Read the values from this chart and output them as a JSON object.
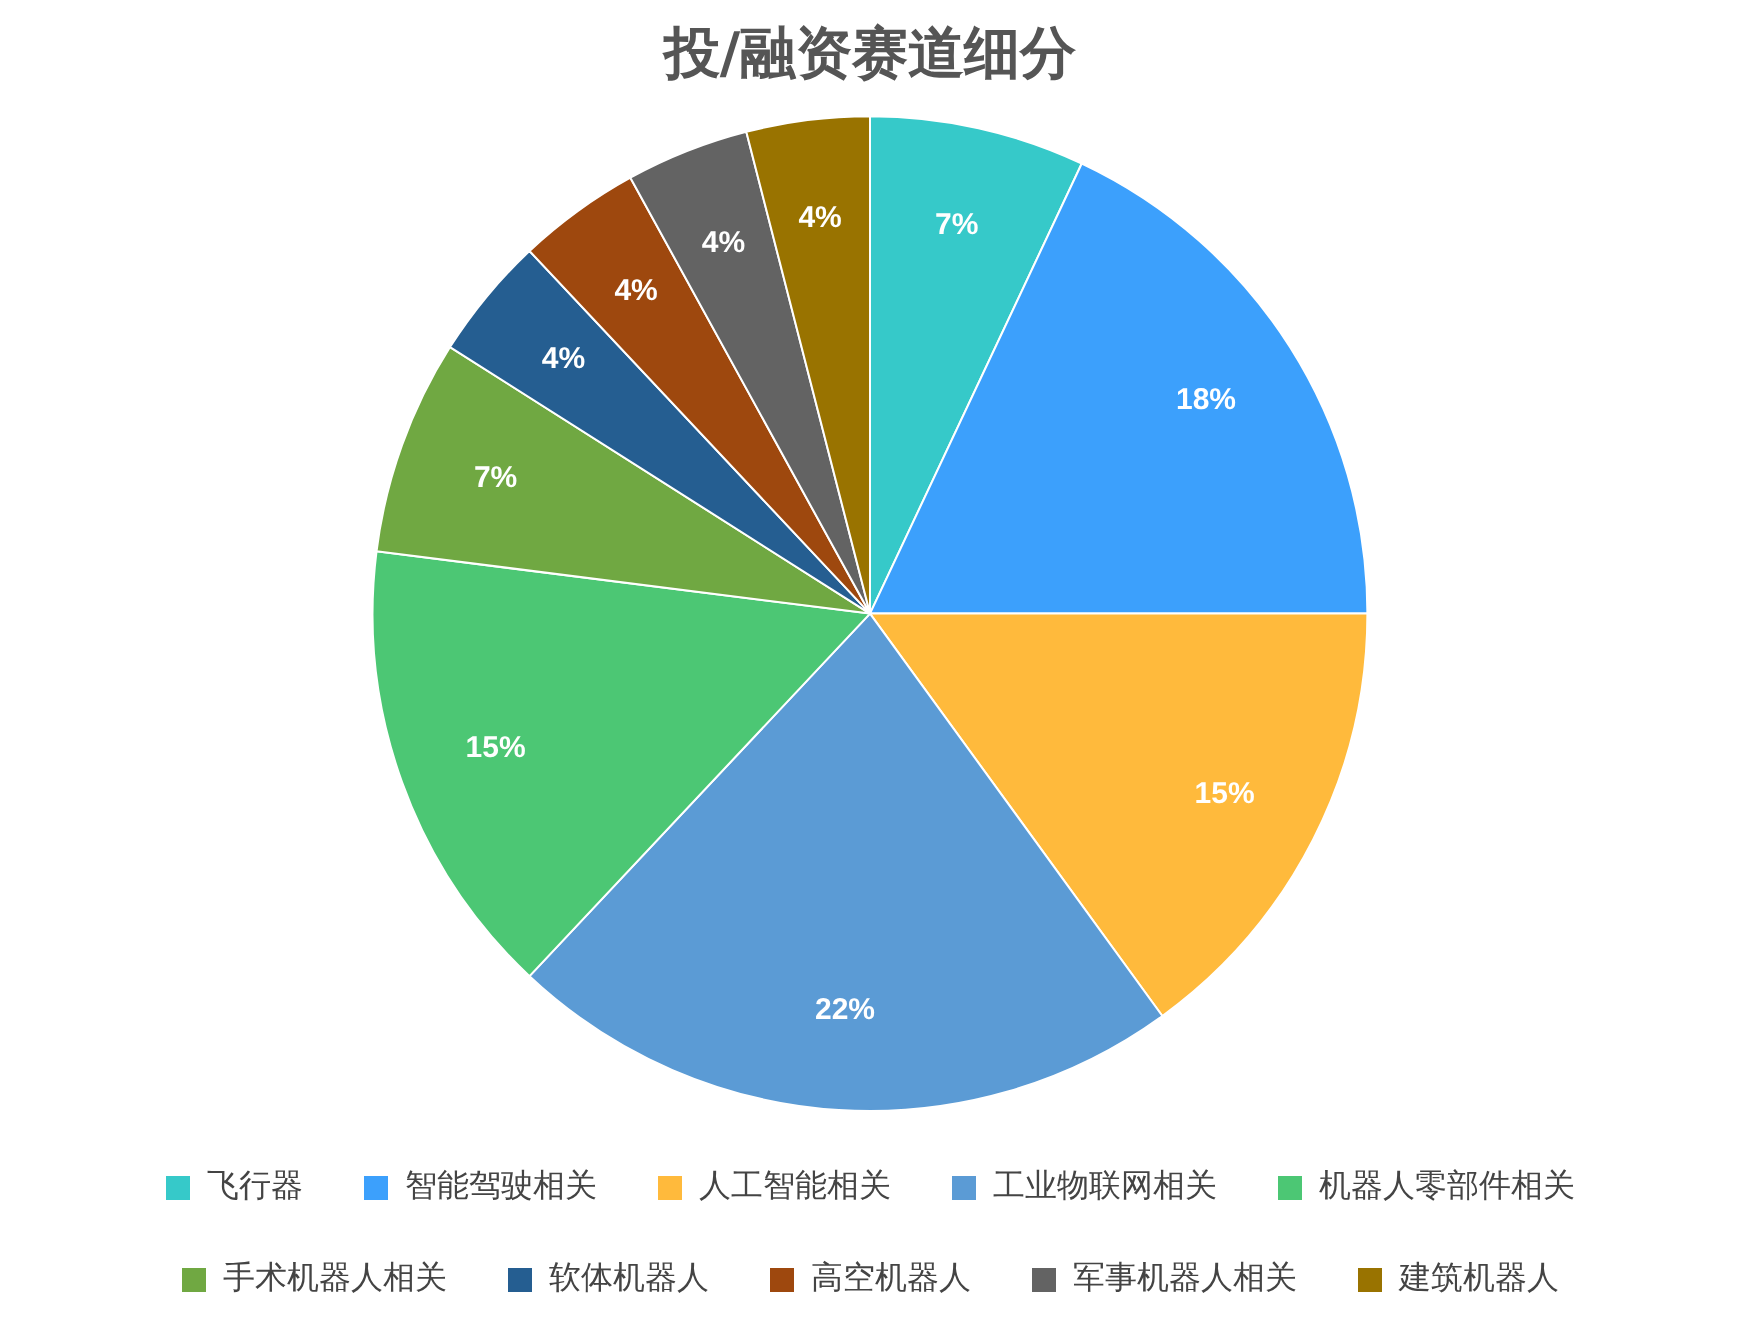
{
  "chart_data": {
    "type": "pie",
    "title": "投/融资赛道细分",
    "categories": [
      "飞行器",
      "智能驾驶相关",
      "人工智能相关",
      "工业物联网相关",
      "机器人零部件相关",
      "手术机器人相关",
      "软体机器人",
      "高空机器人",
      "军事机器人相关",
      "建筑机器人"
    ],
    "values": [
      7,
      18,
      15,
      22,
      15,
      7,
      4,
      4,
      4,
      4
    ],
    "value_labels": [
      "7%",
      "18%",
      "15%",
      "22%",
      "15%",
      "7%",
      "4%",
      "4%",
      "4%",
      "4%"
    ],
    "colors": [
      "#36c9c9",
      "#3ca0fc",
      "#ffba3c",
      "#5b9bd5",
      "#4cc774",
      "#70a842",
      "#255e91",
      "#9e480e",
      "#636363",
      "#997300"
    ],
    "legend": "bottom"
  }
}
